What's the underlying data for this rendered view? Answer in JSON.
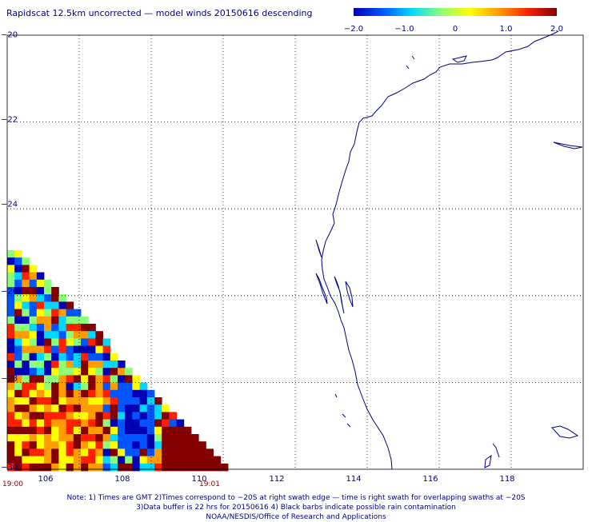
{
  "title": "Rapidscat 12.5km uncorrected — model winds 20150616 descending",
  "colorbar": {
    "ticks": [
      "−2.0",
      "−1.0",
      "0",
      "1.0",
      "2.0"
    ],
    "colors": [
      "#0000b4",
      "#0055ff",
      "#00d8ff",
      "#8cff78",
      "#ffff00",
      "#ff9c00",
      "#ff2000",
      "#820000"
    ],
    "range": [
      -2.0,
      2.0
    ]
  },
  "map": {
    "lon_range": [
      104.0,
      120.0
    ],
    "lat_range": [
      -30.0,
      -20.0
    ],
    "lon_ticks": [
      "106",
      "108",
      "110",
      "112",
      "114",
      "116",
      "118"
    ],
    "lat_ticks": [
      "−20",
      "−22",
      "−24",
      "−26",
      "−28",
      "−30"
    ],
    "grid": true,
    "grid_lons": [
      106,
      108,
      110,
      112,
      114,
      116,
      118
    ],
    "grid_lats": [
      -22,
      -24,
      -26,
      -28
    ],
    "coastline_color": "#000080",
    "data_color_range": [
      -2.0,
      2.0
    ]
  },
  "time_labels": {
    "start": "19:00",
    "end": "19:01"
  },
  "notes": [
    "Note: 1) Times are GMT 2)Times correspond to −20S at right swath edge — time is right swath for overlapping swaths at −20S",
    "3)Data buffer is 22 hrs for 20150616 4) Black barbs indicate possible rain contamination",
    "NOAA/NESDIS/Office of Research and Applications"
  ]
}
